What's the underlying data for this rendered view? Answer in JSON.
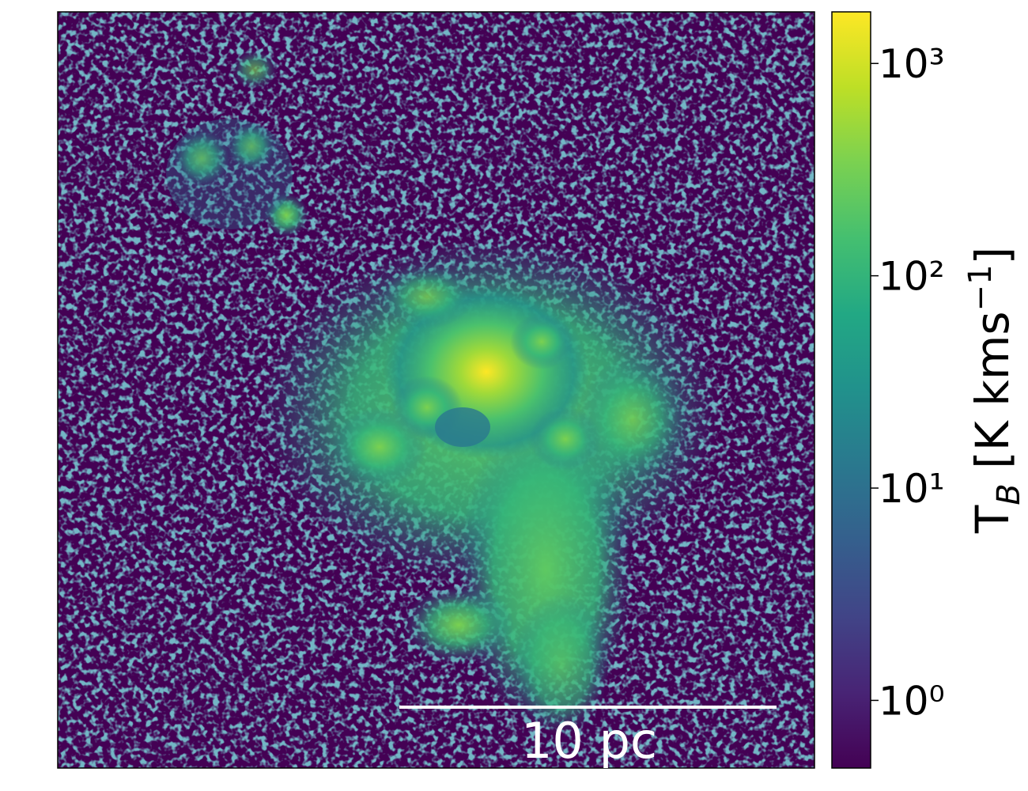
{
  "chart_data": {
    "type": "heatmap",
    "colormap": "viridis",
    "colorbar": {
      "log": true,
      "clim": [
        0.48,
        1750
      ],
      "ticks": [
        {
          "value": 1,
          "label": "10⁰"
        },
        {
          "value": 10,
          "label": "10¹"
        },
        {
          "value": 100,
          "label": "10²"
        },
        {
          "value": 1000,
          "label": "10³"
        }
      ],
      "label_parts": [
        "T",
        "B",
        " [K kms",
        "−1",
        "]"
      ]
    },
    "scale_bar": {
      "label": "10 pc"
    }
  }
}
